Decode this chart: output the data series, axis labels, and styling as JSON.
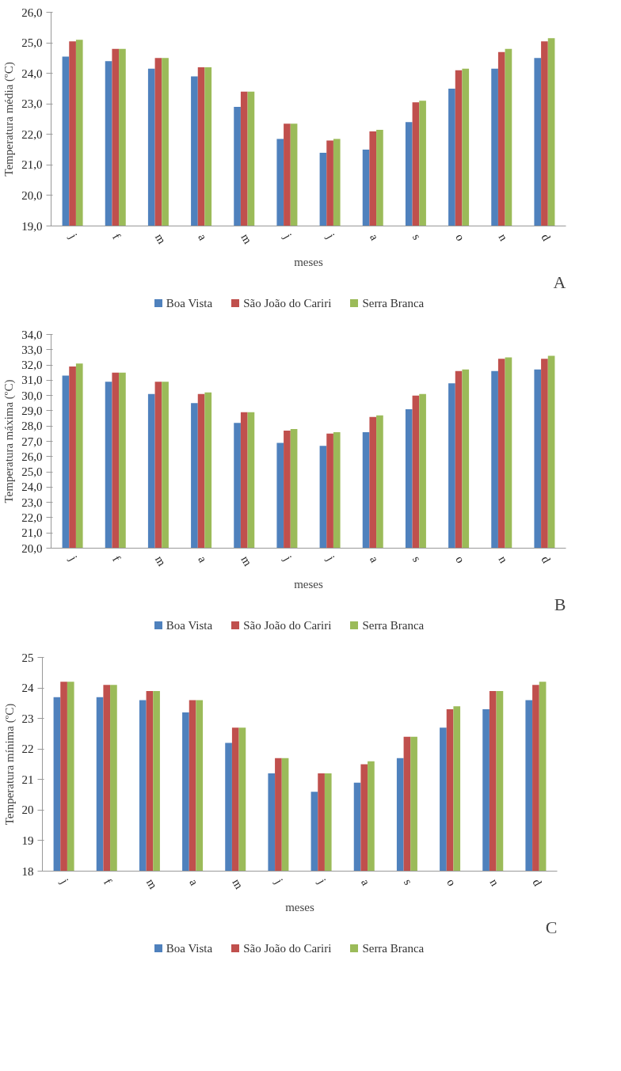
{
  "chart_data": [
    {
      "type": "bar",
      "xlabel": "meses",
      "ylabel": "Temperatura média (ºC)",
      "categories": [
        "j",
        "f",
        "m",
        "a",
        "m",
        "j",
        "j",
        "a",
        "s",
        "o",
        "n",
        "d"
      ],
      "ylim": [
        19,
        26
      ],
      "yticks": [
        {
          "value": 19,
          "label": "19,0"
        },
        {
          "value": 20,
          "label": "20,0"
        },
        {
          "value": 21,
          "label": "21,0"
        },
        {
          "value": 22,
          "label": "22,0"
        },
        {
          "value": 23,
          "label": "23,0"
        },
        {
          "value": 24,
          "label": "24,0"
        },
        {
          "value": 25,
          "label": "25,0"
        },
        {
          "value": 26,
          "label": "26,0"
        }
      ],
      "grid": false,
      "legend": "bottom",
      "annotations": [
        "A"
      ],
      "series": [
        {
          "name": "Boa Vista",
          "color": "#4f81bd",
          "values": [
            24.55,
            24.4,
            24.15,
            23.9,
            22.9,
            21.85,
            21.4,
            21.5,
            22.4,
            23.5,
            24.15,
            24.5
          ]
        },
        {
          "name": "São João do Cariri",
          "color": "#c0504d",
          "values": [
            25.05,
            24.8,
            24.5,
            24.2,
            23.4,
            22.35,
            21.8,
            22.1,
            23.05,
            24.1,
            24.7,
            25.05
          ]
        },
        {
          "name": "Serra Branca",
          "color": "#9bbb59",
          "values": [
            25.1,
            24.8,
            24.5,
            24.2,
            23.4,
            22.35,
            21.85,
            22.15,
            23.1,
            24.15,
            24.8,
            25.15
          ]
        }
      ]
    },
    {
      "type": "bar",
      "xlabel": "meses",
      "ylabel": "Temperatura máxima (ºC)",
      "categories": [
        "j",
        "f",
        "m",
        "a",
        "m",
        "j",
        "j",
        "a",
        "s",
        "o",
        "n",
        "d"
      ],
      "ylim": [
        20,
        34
      ],
      "yticks": [
        {
          "value": 20,
          "label": "20,0"
        },
        {
          "value": 21,
          "label": "21,0"
        },
        {
          "value": 22,
          "label": "22,0"
        },
        {
          "value": 23,
          "label": "23,0"
        },
        {
          "value": 24,
          "label": "24,0"
        },
        {
          "value": 25,
          "label": "25,0"
        },
        {
          "value": 26,
          "label": "26,0"
        },
        {
          "value": 27,
          "label": "27,0"
        },
        {
          "value": 28,
          "label": "28,0"
        },
        {
          "value": 29,
          "label": "29,0"
        },
        {
          "value": 30,
          "label": "30,0"
        },
        {
          "value": 31,
          "label": "31,0"
        },
        {
          "value": 32,
          "label": "32,0"
        },
        {
          "value": 33,
          "label": "33,0"
        },
        {
          "value": 34,
          "label": "34,0"
        }
      ],
      "grid": false,
      "legend": "bottom",
      "annotations": [
        "B"
      ],
      "series": [
        {
          "name": "Boa Vista",
          "color": "#4f81bd",
          "values": [
            31.3,
            30.9,
            30.1,
            29.5,
            28.2,
            26.9,
            26.7,
            27.6,
            29.1,
            30.8,
            31.6,
            31.7
          ]
        },
        {
          "name": "São João do Cariri",
          "color": "#c0504d",
          "values": [
            31.9,
            31.5,
            30.9,
            30.1,
            28.9,
            27.7,
            27.5,
            28.6,
            30.0,
            31.6,
            32.4,
            32.4
          ]
        },
        {
          "name": "Serra Branca",
          "color": "#9bbb59",
          "values": [
            32.1,
            31.5,
            30.9,
            30.2,
            28.9,
            27.8,
            27.6,
            28.7,
            30.1,
            31.7,
            32.5,
            32.6
          ]
        }
      ]
    },
    {
      "type": "bar",
      "xlabel": "meses",
      "ylabel": "Temperatura mínima (ºC)",
      "categories": [
        "j",
        "f",
        "m",
        "a",
        "m",
        "j",
        "j",
        "a",
        "s",
        "o",
        "n",
        "d"
      ],
      "ylim": [
        18,
        25
      ],
      "yticks": [
        18,
        19,
        20,
        21,
        22,
        23,
        24,
        25
      ],
      "grid": false,
      "legend": "bottom",
      "annotations": [
        "C"
      ],
      "series": [
        {
          "name": "Boa Vista",
          "color": "#4f81bd",
          "values": [
            23.7,
            23.7,
            23.6,
            23.2,
            22.2,
            21.2,
            20.6,
            20.9,
            21.7,
            22.7,
            23.3,
            23.6
          ]
        },
        {
          "name": "São João do Cariri",
          "color": "#c0504d",
          "values": [
            24.2,
            24.1,
            23.9,
            23.6,
            22.7,
            21.7,
            21.2,
            21.5,
            22.4,
            23.3,
            23.9,
            24.1
          ]
        },
        {
          "name": "Serra Branca",
          "color": "#9bbb59",
          "values": [
            24.2,
            24.1,
            23.9,
            23.6,
            22.7,
            21.7,
            21.2,
            21.6,
            22.4,
            23.4,
            23.9,
            24.2
          ]
        }
      ]
    }
  ]
}
